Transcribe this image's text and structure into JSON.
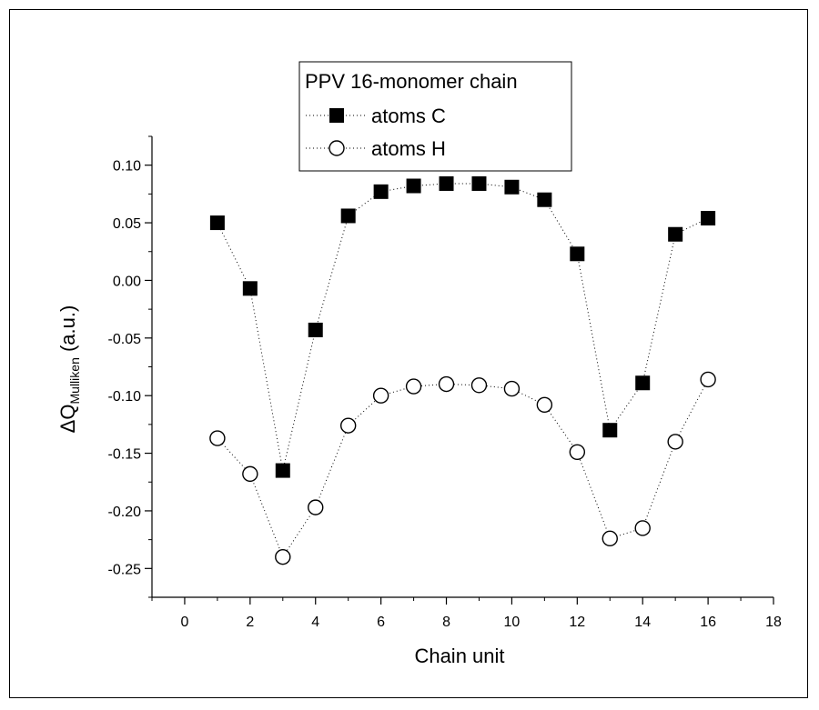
{
  "chart_data": {
    "type": "scatter",
    "title": "PPV 16-monomer chain",
    "xlabel": "Chain unit",
    "ylabel_main": "ΔQ",
    "ylabel_sub": "Mulliken",
    "ylabel_unit": " (a.u.)",
    "xlim": [
      -1,
      18
    ],
    "ylim": [
      -0.275,
      0.125
    ],
    "xticks": [
      0,
      2,
      4,
      6,
      8,
      10,
      12,
      14,
      16,
      18
    ],
    "xtick_labels": [
      "0",
      "2",
      "4",
      "6",
      "8",
      "10",
      "12",
      "14",
      "16",
      "18"
    ],
    "yticks": [
      0.1,
      0.05,
      0.0,
      -0.05,
      -0.1,
      -0.15,
      -0.2,
      -0.25
    ],
    "ytick_labels": [
      "0.10",
      "0.05",
      "0.00",
      "-0.05",
      "-0.10",
      "-0.15",
      "-0.20",
      "-0.25"
    ],
    "legend_position": "top-center",
    "grid": false,
    "series": [
      {
        "name": "atoms C",
        "marker": "filled-square",
        "color": "#000000",
        "x": [
          1,
          2,
          3,
          4,
          5,
          6,
          7,
          8,
          9,
          10,
          11,
          12,
          13,
          14,
          15,
          16
        ],
        "y": [
          0.05,
          -0.007,
          -0.165,
          -0.043,
          0.056,
          0.077,
          0.082,
          0.084,
          0.084,
          0.081,
          0.07,
          0.023,
          -0.13,
          -0.089,
          0.04,
          0.054
        ]
      },
      {
        "name": "atoms H",
        "marker": "open-circle",
        "color": "#000000",
        "x": [
          1,
          2,
          3,
          4,
          5,
          6,
          7,
          8,
          9,
          10,
          11,
          12,
          13,
          14,
          15,
          16
        ],
        "y": [
          -0.137,
          -0.168,
          -0.24,
          -0.197,
          -0.126,
          -0.1,
          -0.092,
          -0.09,
          -0.091,
          -0.094,
          -0.108,
          -0.149,
          -0.224,
          -0.215,
          -0.14,
          -0.086
        ]
      }
    ]
  }
}
